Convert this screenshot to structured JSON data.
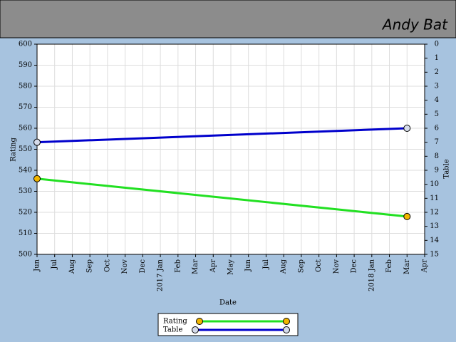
{
  "chart_data": {
    "type": "line",
    "title": "Andy Bat",
    "xlabel": "Date",
    "ylabel": "Rating",
    "y2label": "Table",
    "xlim": [
      "2016-06",
      "2018-04"
    ],
    "xticks": [
      {
        "value": "2016-06",
        "label": "Jun"
      },
      {
        "value": "2016-07",
        "label": "Jul"
      },
      {
        "value": "2016-08",
        "label": "Aug"
      },
      {
        "value": "2016-09",
        "label": "Sep"
      },
      {
        "value": "2016-10",
        "label": "Oct"
      },
      {
        "value": "2016-11",
        "label": "Nov"
      },
      {
        "value": "2016-12",
        "label": "Dec"
      },
      {
        "value": "2017-01",
        "label": "2017 Jan"
      },
      {
        "value": "2017-02",
        "label": "Feb"
      },
      {
        "value": "2017-03",
        "label": "Mar"
      },
      {
        "value": "2017-04",
        "label": "Apr"
      },
      {
        "value": "2017-05",
        "label": "May"
      },
      {
        "value": "2017-06",
        "label": "Jun"
      },
      {
        "value": "2017-07",
        "label": "Jul"
      },
      {
        "value": "2017-08",
        "label": "Aug"
      },
      {
        "value": "2017-09",
        "label": "Sep"
      },
      {
        "value": "2017-10",
        "label": "Oct"
      },
      {
        "value": "2017-11",
        "label": "Nov"
      },
      {
        "value": "2017-12",
        "label": "Dec"
      },
      {
        "value": "2018-01",
        "label": "2018 Jan"
      },
      {
        "value": "2018-02",
        "label": "Feb"
      },
      {
        "value": "2018-03",
        "label": "Mar"
      },
      {
        "value": "2018-04",
        "label": "Apr"
      }
    ],
    "ylim": [
      500,
      600
    ],
    "yticks": [
      500,
      510,
      520,
      530,
      540,
      550,
      560,
      570,
      580,
      590,
      600
    ],
    "y2lim": [
      15,
      0
    ],
    "y2ticks": [
      0,
      1,
      2,
      3,
      4,
      5,
      6,
      7,
      8,
      9,
      10,
      11,
      12,
      13,
      14,
      15
    ],
    "grid": true,
    "series": [
      {
        "name": "Rating",
        "color": "#22e022",
        "marker_color": "#f2b600",
        "x": [
          "2016-06",
          "2018-03"
        ],
        "values": [
          536,
          518
        ]
      },
      {
        "name": "Table",
        "color": "#0000cc",
        "marker_color": "#d6dceb",
        "axis": "y2",
        "x": [
          "2016-06",
          "2018-03"
        ],
        "values": [
          7,
          6
        ]
      }
    ]
  }
}
